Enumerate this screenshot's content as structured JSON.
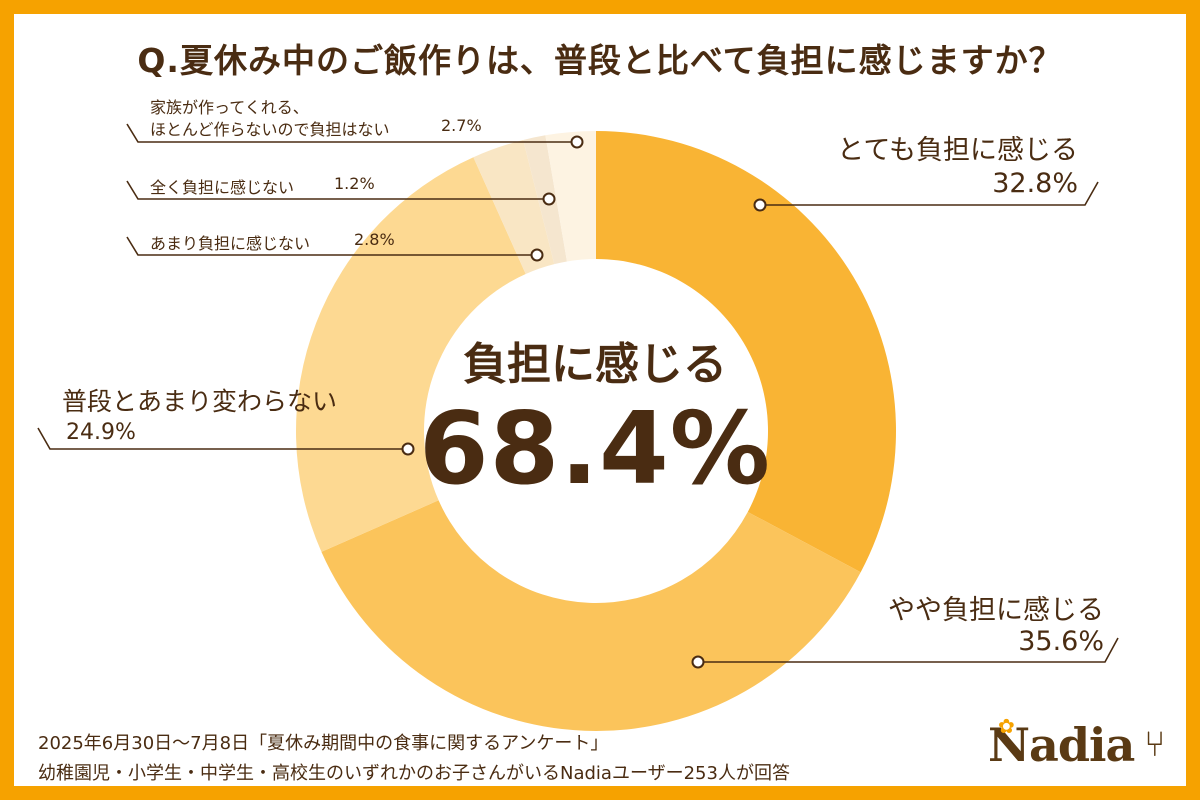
{
  "title": "Q.夏休み中のご飯作りは、普段と比べて負担に感じますか？",
  "center": {
    "label": "負担に感じる",
    "value": "68.4%"
  },
  "chart_data": {
    "type": "pie",
    "title": "Q.夏休み中のご飯作りは、普段と比べて負担に感じますか？",
    "categories": [
      "とても負担に感じる",
      "やや負担に感じる",
      "普段とあまり変わらない",
      "あまり負担に感じない",
      "全く負担に感じない",
      "家族が作ってくれる、ほとんど作らないので負担はない"
    ],
    "values": [
      32.8,
      35.6,
      24.9,
      2.8,
      1.2,
      2.7
    ],
    "unit": "%",
    "colors": [
      "#f9b434",
      "#fbc45b",
      "#fdd992",
      "#f9e6c4",
      "#f5e6cf",
      "#fdf3e2"
    ]
  },
  "labels": {
    "totemo": {
      "name": "とても負担に感じる",
      "value": "32.8%"
    },
    "yaya": {
      "name": "やや負担に感じる",
      "value": "35.6%"
    },
    "fudan": {
      "name": "普段とあまり変わらない",
      "value": "24.9%"
    },
    "amari": {
      "name": "あまり負担に感じない",
      "value": "2.8%"
    },
    "mattaku": {
      "name": "全く負担に感じない",
      "value": "1.2%"
    },
    "kazoku": {
      "line1": "家族が作ってくれる、",
      "line2": "ほとんど作らないので負担はない",
      "value": "2.7%"
    }
  },
  "footnote": {
    "line1": "2025年6月30日～7月8日「夏休み期間中の食事に関するアンケート」",
    "line2": "幼稚園児・小学生・中学生・高校生のいずれかのお子さんがいるNadiaユーザー253人が回答"
  },
  "logo": {
    "text": "Nadia",
    "icon": "fork-knife-icon"
  },
  "colors": {
    "frame": "#f6a200",
    "text": "#4a2c12",
    "leader": "#4a2c12"
  }
}
